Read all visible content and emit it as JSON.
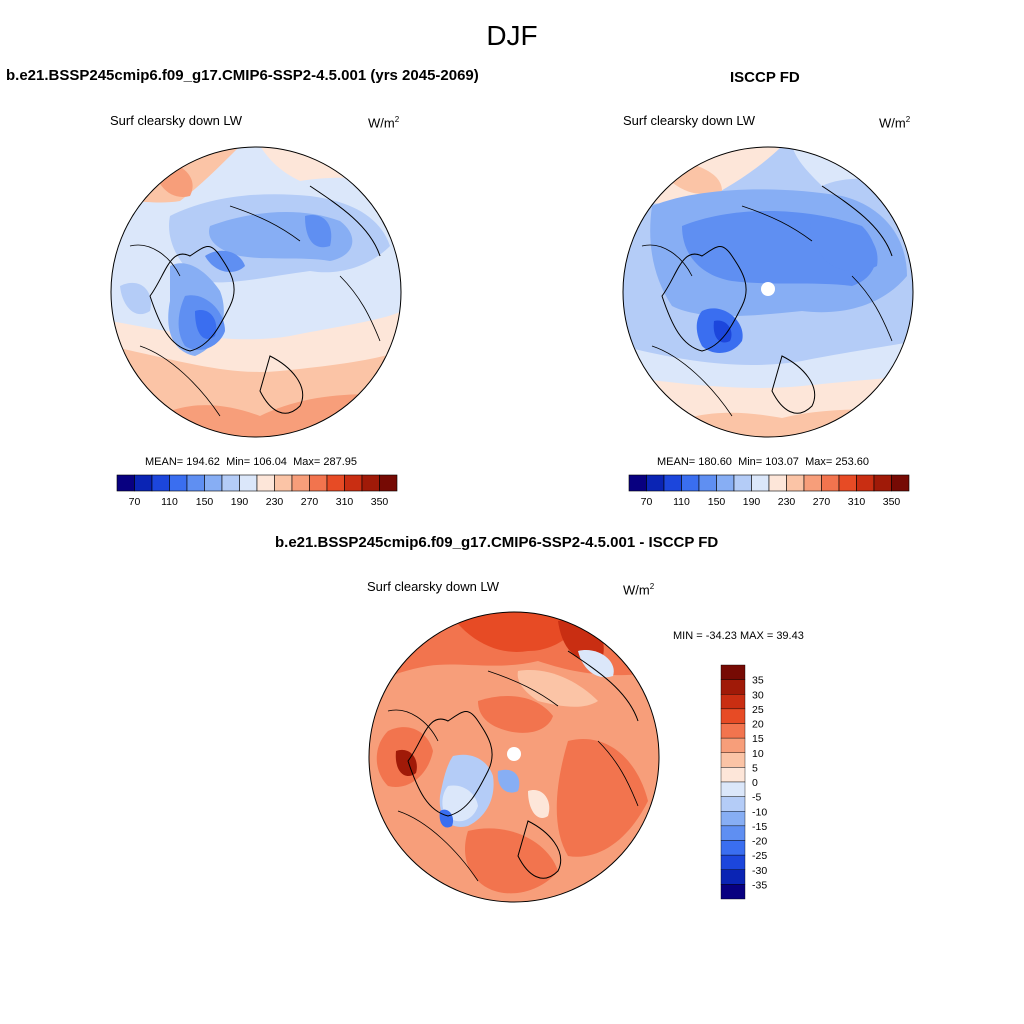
{
  "season": "DJF",
  "panels": [
    {
      "title": "b.e21.BSSP245cmip6.f09_g17.CMIP6-SSP2-4.5.001 (yrs 2045-2069)",
      "variable": "Surf clearsky down LW",
      "units_base": "W/m",
      "units_exp": "2",
      "mean_label": "MEAN=",
      "mean": "194.62",
      "min_label": "Min=",
      "min": "106.04",
      "max_label": "Max=",
      "max": "287.95"
    },
    {
      "title": "ISCCP FD",
      "variable": "Surf clearsky down LW",
      "units_base": "W/m",
      "units_exp": "2",
      "mean_label": "MEAN=",
      "mean": "180.60",
      "min_label": "Min=",
      "min": "103.07",
      "max_label": "Max=",
      "max": "253.60"
    }
  ],
  "diff_panel": {
    "title": "b.e21.BSSP245cmip6.f09_g17.CMIP6-SSP2-4.5.001 - ISCCP FD",
    "variable": "Surf clearsky down LW",
    "units_base": "W/m",
    "units_exp": "2",
    "minmax": "MIN = -34.23 MAX =  39.43"
  },
  "colorbar_field": {
    "tick_labels": [
      "70",
      "110",
      "150",
      "190",
      "230",
      "270",
      "310",
      "350"
    ],
    "colors": [
      "#080080",
      "#0a24b4",
      "#1c46dc",
      "#3a6ef0",
      "#5f8ff2",
      "#87aef4",
      "#b4ccf7",
      "#dbe7fa",
      "#fde6d9",
      "#fbc4a6",
      "#f79e7a",
      "#f2744e",
      "#e74b25",
      "#c92e12",
      "#a01a08",
      "#760a04"
    ]
  },
  "colorbar_diff": {
    "tick_labels": [
      "35",
      "30",
      "25",
      "20",
      "15",
      "10",
      "5",
      "0",
      "-5",
      "-10",
      "-15",
      "-20",
      "-25",
      "-30",
      "-35"
    ],
    "colors": [
      "#760a04",
      "#a01a08",
      "#c92e12",
      "#e74b25",
      "#f2744e",
      "#f79e7a",
      "#fbc4a6",
      "#fde6d9",
      "#dbe7fa",
      "#b4ccf7",
      "#87aef4",
      "#5f8ff2",
      "#3a6ef0",
      "#1c46dc",
      "#0a24b4",
      "#080080"
    ]
  }
}
